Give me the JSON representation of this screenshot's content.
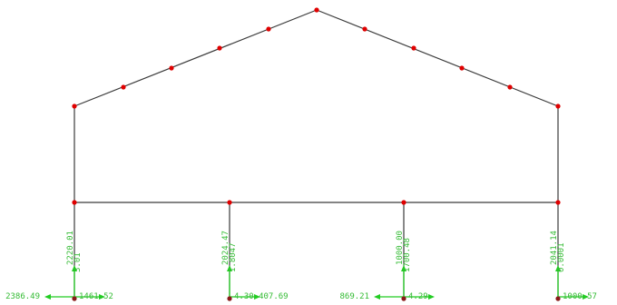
{
  "colors": {
    "background": "#ffffff",
    "member": "#3a3a3a",
    "node": "#e00000",
    "reaction": "#22cc22",
    "reaction_label": "#33bb33"
  },
  "icons": {
    "node": "node-dot",
    "reaction": "reaction-arrow"
  },
  "supports": [
    {
      "vertical_value": "2220.01",
      "vertical_value_overlay": "3.01",
      "left_value": "2386.49",
      "right_value": "1461.52"
    },
    {
      "vertical_value": "2024.47",
      "vertical_value_overlay": "1.8047",
      "left_value": "",
      "right_value": "4.30 407.69"
    },
    {
      "vertical_value": "1000.00",
      "vertical_value_overlay": "1700.48",
      "left_value": "869.21",
      "right_value": "4.29"
    },
    {
      "vertical_value": "2041.14",
      "vertical_value_overlay": "0.0001",
      "left_value": "",
      "right_value": "1000.57"
    }
  ]
}
